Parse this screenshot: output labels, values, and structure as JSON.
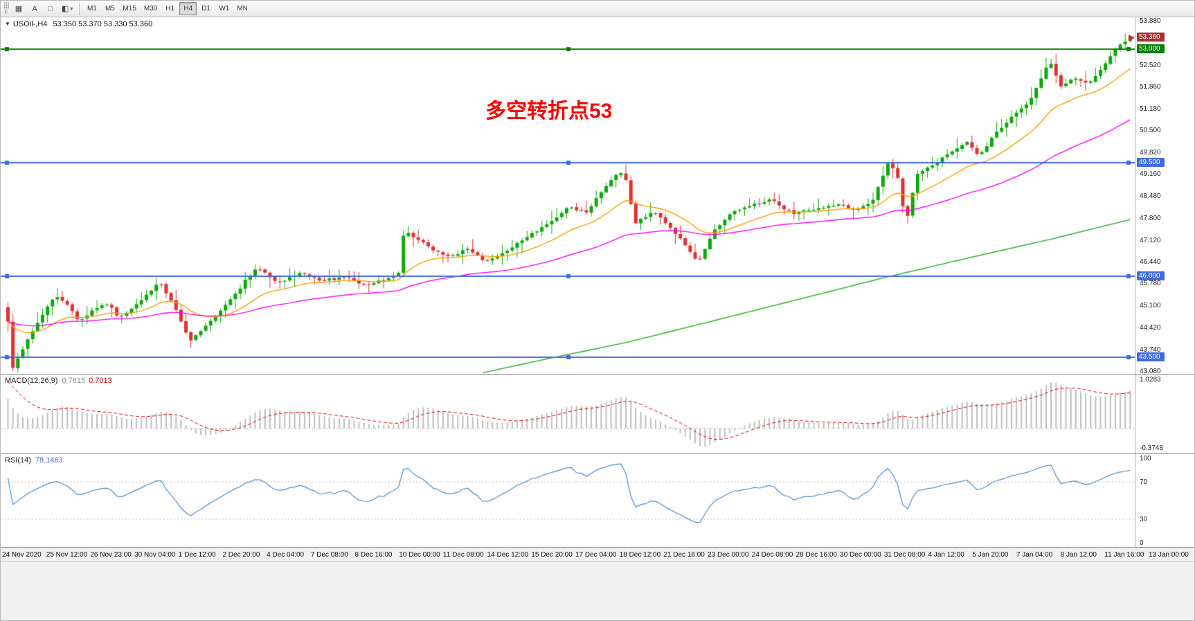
{
  "toolbar": {
    "handle_label": "F",
    "tools": [
      {
        "name": "charts-grid",
        "glyph": "▦"
      },
      {
        "name": "text-label",
        "glyph": "A"
      },
      {
        "name": "select-box",
        "glyph": "□"
      },
      {
        "name": "draw-tools",
        "glyph": "◧",
        "caret": "▾"
      }
    ],
    "timeframes": [
      "M1",
      "M5",
      "M15",
      "M30",
      "H1",
      "H4",
      "D1",
      "W1",
      "MN"
    ],
    "active_timeframe": "H4"
  },
  "chart": {
    "collapse_arrow": "▼",
    "title": "USOil-,H4",
    "ohlc": "53.350 53.370 53.330 53.360",
    "annotation": {
      "text": "多空转折点53",
      "color": "#ff0000"
    },
    "axis": {
      "ticks": [
        "53.880",
        "52.520",
        "51.860",
        "51.180",
        "50.500",
        "49.820",
        "49.160",
        "48.480",
        "47.800",
        "47.120",
        "46.440",
        "45.780",
        "45.100",
        "44.420",
        "43.740",
        "43.080"
      ],
      "badges": [
        {
          "name": "last-price",
          "label": "53.360",
          "price": 53.36,
          "color": "#a63232"
        },
        {
          "name": "hline-53000",
          "label": "53.000",
          "price": 53.0,
          "color": "#008000"
        },
        {
          "name": "hline-49500",
          "label": "49.500",
          "price": 49.5,
          "color": "#4169e1"
        },
        {
          "name": "hline-46000",
          "label": "46.000",
          "price": 46.0,
          "color": "#4169e1"
        },
        {
          "name": "hline-43500",
          "label": "43.500",
          "price": 43.5,
          "color": "#4169e1"
        }
      ]
    },
    "time_labels": [
      "24 Nov 2020",
      "25 Nov 12:00",
      "26 Nov 23:00",
      "30 Nov 04:00",
      "1 Dec 12:00",
      "2 Dec 20:00",
      "4 Dec 04:00",
      "7 Dec 08:00",
      "8 Dec 16:00",
      "10 Dec 00:00",
      "11 Dec 08:00",
      "14 Dec 12:00",
      "15 Dec 20:00",
      "17 Dec 04:00",
      "18 Dec 12:00",
      "21 Dec 16:00",
      "23 Dec 00:00",
      "24 Dec 08:00",
      "28 Dec 16:00",
      "30 Dec 00:00",
      "31 Dec 08:00",
      "4 Jan 12:00",
      "5 Jan 20:00",
      "7 Jan 04:00",
      "8 Jan 12:00",
      "11 Jan 16:00",
      "13 Jan 00:00"
    ]
  },
  "chart_data": {
    "type": "candlestick",
    "symbol": "USOil-",
    "period": "H4",
    "last_price": 53.36,
    "price_range": [
      42.99,
      53.99
    ],
    "num_candles": 228,
    "up_color": "#0caa0c",
    "down_color": "#e23030",
    "close_anchors": [
      [
        0,
        44.6
      ],
      [
        0.004,
        43.15
      ],
      [
        0.02,
        44.2
      ],
      [
        0.034,
        45.0
      ],
      [
        0.042,
        45.4
      ],
      [
        0.054,
        45.1
      ],
      [
        0.063,
        44.6
      ],
      [
        0.075,
        44.95
      ],
      [
        0.09,
        45.15
      ],
      [
        0.099,
        44.7
      ],
      [
        0.105,
        44.85
      ],
      [
        0.12,
        45.3
      ],
      [
        0.135,
        45.85
      ],
      [
        0.15,
        44.95
      ],
      [
        0.162,
        43.98
      ],
      [
        0.18,
        44.6
      ],
      [
        0.2,
        45.35
      ],
      [
        0.222,
        46.28
      ],
      [
        0.24,
        45.8
      ],
      [
        0.26,
        46.1
      ],
      [
        0.28,
        45.85
      ],
      [
        0.3,
        46.0
      ],
      [
        0.32,
        45.72
      ],
      [
        0.34,
        45.95
      ],
      [
        0.348,
        46.1
      ],
      [
        0.353,
        47.4
      ],
      [
        0.37,
        47.05
      ],
      [
        0.39,
        46.6
      ],
      [
        0.41,
        46.85
      ],
      [
        0.425,
        46.45
      ],
      [
        0.44,
        46.7
      ],
      [
        0.46,
        47.15
      ],
      [
        0.48,
        47.6
      ],
      [
        0.5,
        48.15
      ],
      [
        0.515,
        47.95
      ],
      [
        0.53,
        48.65
      ],
      [
        0.545,
        49.25
      ],
      [
        0.552,
        48.9
      ],
      [
        0.558,
        47.6
      ],
      [
        0.575,
        48.0
      ],
      [
        0.59,
        47.5
      ],
      [
        0.605,
        46.9
      ],
      [
        0.615,
        46.42
      ],
      [
        0.63,
        47.45
      ],
      [
        0.645,
        47.98
      ],
      [
        0.66,
        48.15
      ],
      [
        0.68,
        48.38
      ],
      [
        0.7,
        47.92
      ],
      [
        0.72,
        48.08
      ],
      [
        0.74,
        48.22
      ],
      [
        0.755,
        48.02
      ],
      [
        0.77,
        48.28
      ],
      [
        0.785,
        49.55
      ],
      [
        0.7935,
        49.0
      ],
      [
        0.8,
        47.6
      ],
      [
        0.81,
        49.15
      ],
      [
        0.825,
        49.45
      ],
      [
        0.84,
        49.82
      ],
      [
        0.855,
        50.15
      ],
      [
        0.865,
        49.7
      ],
      [
        0.88,
        50.42
      ],
      [
        0.895,
        50.95
      ],
      [
        0.91,
        51.38
      ],
      [
        0.92,
        52.05
      ],
      [
        0.928,
        52.68
      ],
      [
        0.938,
        51.85
      ],
      [
        0.95,
        52.12
      ],
      [
        0.963,
        51.95
      ],
      [
        0.975,
        52.42
      ],
      [
        0.988,
        53.05
      ],
      [
        1,
        53.36
      ]
    ],
    "hlines": [
      {
        "price": 53.0,
        "color": "#008000"
      },
      {
        "price": 49.5,
        "color": "#4169e1"
      },
      {
        "price": 46.0,
        "color": "#4169e1"
      },
      {
        "price": 43.5,
        "color": "#4169e1"
      }
    ],
    "moving_averages": [
      {
        "name": "fast-ma",
        "period": 18,
        "color": "#ff9d00"
      },
      {
        "name": "mid-ma",
        "period": 60,
        "color": "#ff00ff"
      }
    ],
    "slow_ma": {
      "name": "slow-ma",
      "color": "#3cb43c",
      "anchors": [
        [
          0.42,
          43.0
        ],
        [
          0.48,
          43.45
        ],
        [
          0.55,
          43.95
        ],
        [
          0.62,
          44.55
        ],
        [
          0.7,
          45.25
        ],
        [
          0.78,
          45.95
        ],
        [
          0.86,
          46.6
        ],
        [
          0.93,
          47.15
        ],
        [
          1,
          47.75
        ]
      ]
    }
  },
  "macd": {
    "label": "MACD(12,26,9)",
    "value_main": "0.7615",
    "value_signal": "0.7013",
    "fast": 12,
    "slow": 26,
    "signal": 9,
    "axis_top": "1.0283",
    "axis_bottom": "-0.3748",
    "bar_color": "#bdbdbd",
    "line_color": "#dd0000"
  },
  "rsi": {
    "label": "RSI(14)",
    "value": "78.1463",
    "period": 14,
    "levels": [
      70,
      30
    ],
    "axis": [
      "100",
      "70",
      "30",
      "0"
    ],
    "line_color": "#4b89d0"
  }
}
